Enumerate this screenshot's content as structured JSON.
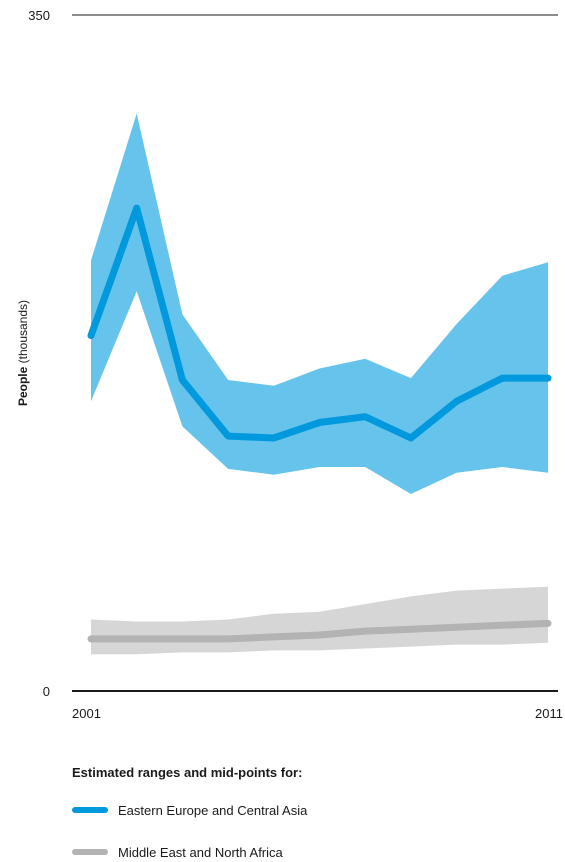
{
  "chart_data": {
    "type": "area",
    "ylabel_bold": "People",
    "ylabel_rest": " (thousands)",
    "ylim": [
      0,
      350
    ],
    "y_ticks": [
      "0",
      "350"
    ],
    "x_ticks": [
      "2001",
      "2011"
    ],
    "x": [
      2001,
      2002,
      2003,
      2004,
      2005,
      2006,
      2007,
      2008,
      2009,
      2010,
      2011
    ],
    "legend_title": "Estimated ranges and mid-points for:",
    "series": [
      {
        "name": "Eastern Europe and Central Asia",
        "color": "#0099dd",
        "band_color": "#66c4ec",
        "mid": [
          184,
          250,
          161,
          132,
          131,
          139,
          142,
          131,
          150,
          162,
          162
        ],
        "lower": [
          150,
          207,
          137,
          115,
          112,
          116,
          116,
          102,
          113,
          116,
          113
        ],
        "upper": [
          223,
          299,
          195,
          161,
          158,
          167,
          172,
          162,
          190,
          215,
          222
        ]
      },
      {
        "name": "Middle East and North Africa",
        "color": "#b3b3b3",
        "band_color": "#d6d6d6",
        "mid": [
          27,
          27,
          27,
          27,
          28,
          29,
          31,
          32,
          33,
          34,
          35
        ],
        "lower": [
          19,
          19,
          20,
          20,
          21,
          21,
          22,
          23,
          24,
          24,
          25
        ],
        "upper": [
          37,
          36,
          36,
          37,
          40,
          41,
          45,
          49,
          52,
          53,
          54
        ]
      }
    ]
  }
}
